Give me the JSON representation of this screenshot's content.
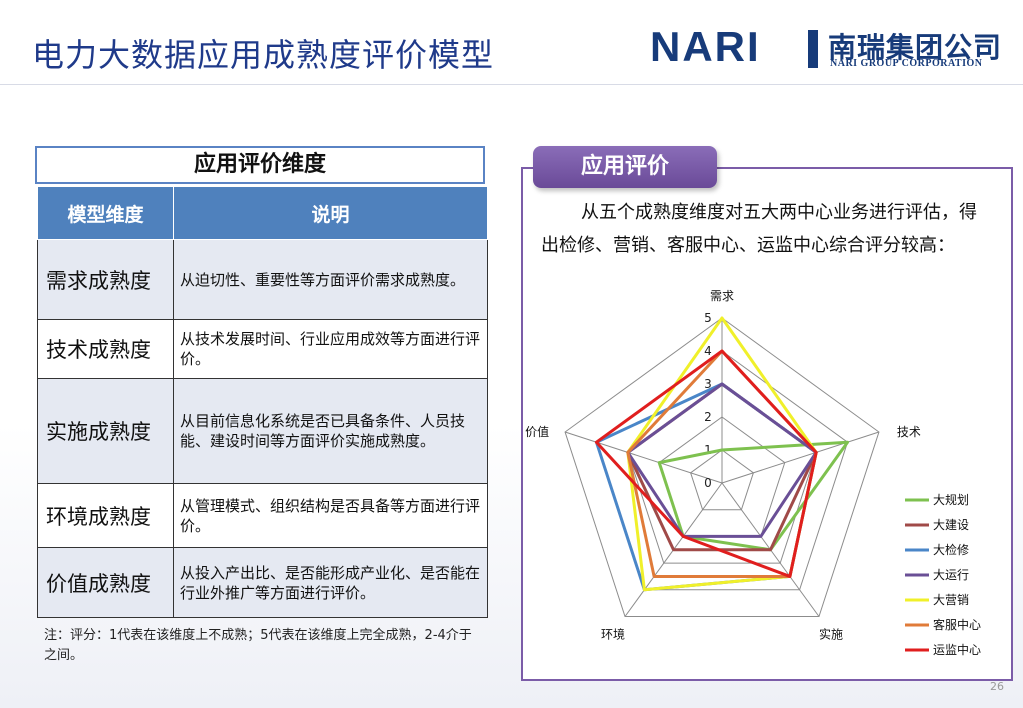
{
  "header": {
    "title": "电力大数据应用成熟度评价模型",
    "logo": {
      "mark": "NARI",
      "cn": "南瑞集团公司",
      "en": "NARI GROUP CORPORATION"
    }
  },
  "left": {
    "section_title": "应用评价维度",
    "columns": [
      "模型维度",
      "说明"
    ],
    "rows": [
      {
        "dimension": "需求成熟度",
        "desc": "从迫切性、重要性等方面评价需求成熟度。"
      },
      {
        "dimension": "技术成熟度",
        "desc": "从技术发展时间、行业应用成效等方面进行评价。"
      },
      {
        "dimension": "实施成熟度",
        "desc": "从目前信息化系统是否已具备条件、人员技能、建设时间等方面评价实施成熟度。"
      },
      {
        "dimension": "环境成熟度",
        "desc": "从管理模式、组织结构是否具备等方面进行评价。"
      },
      {
        "dimension": "价值成熟度",
        "desc": "从投入产出比、是否能形成产业化、是否能在行业外推广等方面进行评价。"
      }
    ],
    "note": "注：评分：1代表在该维度上不成熟；5代表在该维度上完全成熟，2-4介于之间。"
  },
  "right": {
    "tab_label": "应用评价",
    "text": "从五个成熟度维度对五大两中心业务进行评估，得出检修、营销、客服中心、运监中心综合评分较高："
  },
  "chart_data": {
    "type": "radar",
    "axes": [
      "需求",
      "技术",
      "实施",
      "环境",
      "价值"
    ],
    "r_ticks": [
      0,
      1,
      2,
      3,
      4,
      5
    ],
    "rlim": [
      0,
      5
    ],
    "legend_position": "right",
    "series": [
      {
        "name": "大规划",
        "color": "#7ec14f",
        "values": [
          1,
          4,
          2.5,
          2,
          2
        ]
      },
      {
        "name": "大建设",
        "color": "#a04a48",
        "values": [
          3,
          3,
          2.5,
          2.5,
          3
        ]
      },
      {
        "name": "大检修",
        "color": "#4a86c8",
        "values": [
          3,
          3,
          3.5,
          4,
          4
        ]
      },
      {
        "name": "大运行",
        "color": "#6a4f96",
        "values": [
          3,
          3,
          2,
          2,
          3
        ]
      },
      {
        "name": "大营销",
        "color": "#f0f02a",
        "values": [
          5,
          3,
          3.5,
          4,
          3
        ]
      },
      {
        "name": "客服中心",
        "color": "#e07b39",
        "values": [
          4,
          3,
          3.5,
          3.5,
          3
        ]
      },
      {
        "name": "运监中心",
        "color": "#e01e1e",
        "values": [
          4,
          3,
          3.5,
          2,
          4
        ]
      }
    ]
  },
  "footer": {
    "page": "26"
  }
}
